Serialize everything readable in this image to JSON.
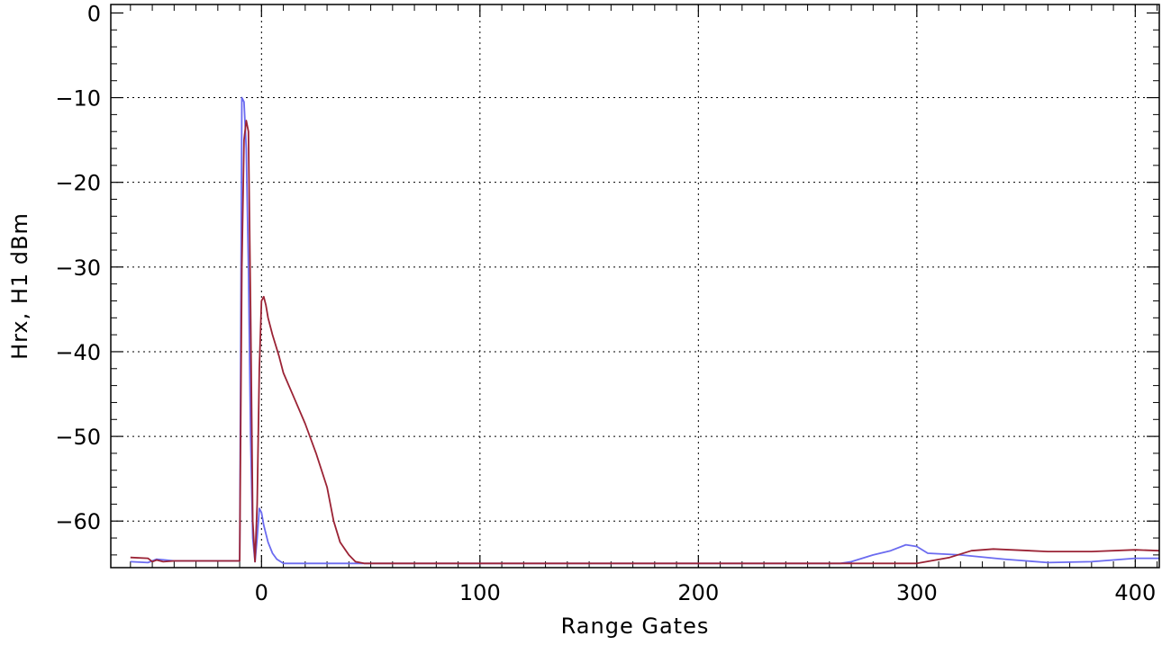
{
  "chart_data": {
    "type": "line",
    "title": "",
    "xlabel": "Range Gates",
    "ylabel": "Hrx, H1 dBm",
    "xlim": [
      -69,
      411
    ],
    "ylim": [
      -65.5,
      1
    ],
    "x_major_ticks": [
      0,
      100,
      200,
      300,
      400
    ],
    "y_major_ticks": [
      0,
      -10,
      -20,
      -30,
      -40,
      -50,
      -60
    ],
    "x_tick_labels": [
      "0",
      "100",
      "200",
      "300",
      "400"
    ],
    "y_tick_labels": [
      "0",
      "−10",
      "−20",
      "−30",
      "−40",
      "−50",
      "−60"
    ],
    "x_minor_step": 10,
    "y_minor_step": 2,
    "grid": true,
    "legend": "none",
    "series": [
      {
        "color": "#6b6bf0",
        "x": [
          -60,
          -52,
          -48,
          -44,
          -40,
          -30,
          -20,
          -12,
          -10,
          -9,
          -8,
          -7,
          -6,
          -5,
          -4,
          -3,
          -2,
          -1,
          0,
          1,
          2,
          3,
          5,
          7,
          10,
          20,
          40,
          100,
          200,
          265,
          270,
          280,
          288,
          295,
          300,
          305,
          320,
          340,
          360,
          380,
          400,
          411
        ],
        "y": [
          -64.8,
          -64.9,
          -64.5,
          -64.6,
          -64.7,
          -64.7,
          -64.7,
          -64.7,
          -64.7,
          -10,
          -10.5,
          -16,
          -30,
          -50,
          -62,
          -64.8,
          -62,
          -58.5,
          -59,
          -60.5,
          -61.5,
          -62.5,
          -63.8,
          -64.5,
          -65,
          -65,
          -65,
          -65,
          -65,
          -65,
          -64.8,
          -64,
          -63.5,
          -62.8,
          -63,
          -63.8,
          -64,
          -64.5,
          -64.9,
          -64.8,
          -64.4,
          -64.4
        ]
      },
      {
        "color": "#9b2335",
        "x": [
          -60,
          -52,
          -50,
          -48,
          -45,
          -40,
          -30,
          -20,
          -12,
          -10,
          -9,
          -8,
          -7,
          -6,
          -5,
          -4,
          -3,
          -2,
          -1,
          0,
          1,
          2,
          3,
          5,
          8,
          10,
          15,
          20,
          25,
          30,
          33,
          36,
          40,
          43,
          47,
          55,
          100,
          200,
          270,
          300,
          315,
          325,
          335,
          360,
          380,
          400,
          411
        ],
        "y": [
          -64.3,
          -64.4,
          -64.8,
          -64.6,
          -64.8,
          -64.7,
          -64.7,
          -64.7,
          -64.7,
          -64.7,
          -30,
          -15,
          -12.7,
          -14,
          -35,
          -60,
          -64.8,
          -58,
          -42,
          -34,
          -33.5,
          -34.5,
          -36,
          -38,
          -40.5,
          -42.5,
          -45.5,
          -48.5,
          -52,
          -56,
          -60,
          -62.5,
          -64,
          -64.8,
          -65,
          -65,
          -65,
          -65,
          -65,
          -65,
          -64.3,
          -63.5,
          -63.3,
          -63.6,
          -63.6,
          -63.4,
          -63.5
        ]
      }
    ]
  }
}
